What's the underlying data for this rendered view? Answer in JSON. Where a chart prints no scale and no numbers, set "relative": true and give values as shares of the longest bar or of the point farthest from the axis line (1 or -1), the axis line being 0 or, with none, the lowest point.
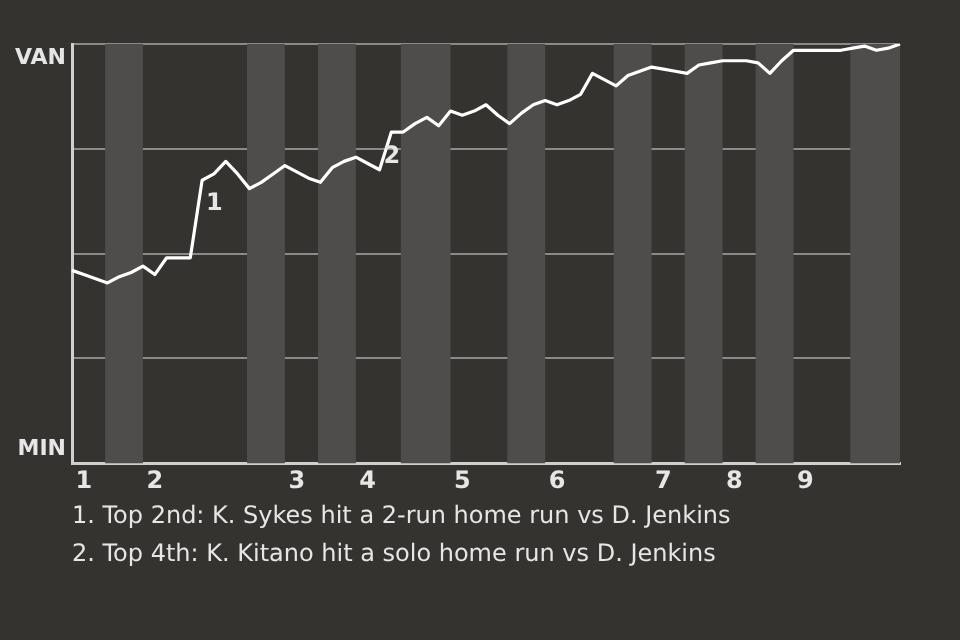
{
  "chart_data": {
    "type": "line",
    "relative": true,
    "annotations": [
      "VAN",
      "MIN",
      "1",
      "2",
      "1. Top 2nd: K. Sykes hit a 2-run home run vs D. Jenkins",
      "2. Top 4th: K. Kitano hit a solo home run vs D. Jenkins"
    ],
    "categories": [
      null,
      "1",
      null,
      null,
      null,
      null,
      null,
      "2",
      null,
      null,
      null,
      null,
      null,
      null,
      null,
      null,
      null,
      null,
      null,
      "3",
      null,
      null,
      null,
      null,
      null,
      "4",
      null,
      null,
      null,
      null,
      null,
      null,
      null,
      "5",
      null,
      null,
      null,
      null,
      null,
      null,
      null,
      "6",
      null,
      null,
      null,
      null,
      null,
      null,
      null,
      null,
      "7",
      null,
      null,
      null,
      null,
      null,
      "8",
      null,
      null,
      null,
      null,
      null,
      "9",
      null,
      null,
      null,
      null,
      null,
      null,
      null,
      null
    ],
    "series": [
      {
        "color": "#ffffff",
        "values": [
          0.46,
          0.45,
          0.44,
          0.43,
          0.445,
          0.455,
          0.47,
          0.45,
          0.49,
          0.49,
          0.49,
          0.675,
          0.69,
          0.72,
          0.69,
          0.655,
          0.67,
          0.69,
          0.71,
          0.695,
          0.68,
          0.67,
          0.705,
          0.72,
          0.73,
          0.715,
          0.7,
          0.79,
          0.79,
          0.81,
          0.825,
          0.805,
          0.84,
          0.83,
          0.84,
          0.855,
          0.83,
          0.81,
          0.835,
          0.855,
          0.865,
          0.855,
          0.865,
          0.88,
          0.93,
          0.915,
          0.9,
          0.925,
          0.935,
          0.945,
          0.94,
          0.935,
          0.93,
          0.95,
          0.955,
          0.96,
          0.96,
          0.96,
          0.955,
          0.93,
          0.96,
          0.985,
          0.985,
          0.985,
          0.985,
          0.985,
          0.99,
          0.995,
          0.985,
          0.99,
          1.0
        ]
      }
    ],
    "grid": "y",
    "legend": false,
    "marker": "none",
    "line_style": "solid"
  }
}
